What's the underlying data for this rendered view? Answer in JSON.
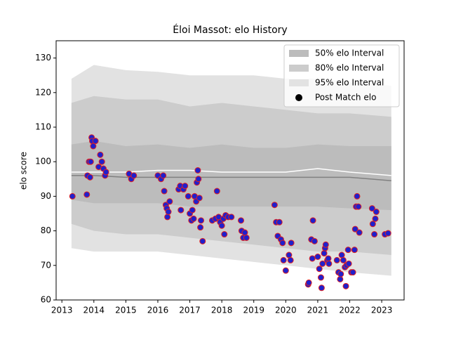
{
  "chart_data": {
    "type": "band-scatter",
    "title": "Éloi Massot: elo History",
    "y_label": "elo score",
    "xlim": [
      2012.82,
      2023.7
    ],
    "ylim": [
      60,
      135
    ],
    "xticks": [
      2013,
      2014,
      2015,
      2016,
      2017,
      2018,
      2019,
      2020,
      2021,
      2022,
      2023
    ],
    "yticks": [
      60,
      70,
      80,
      90,
      100,
      110,
      120,
      130
    ],
    "legend": "upper right",
    "band_x": [
      2013.3,
      2014,
      2015,
      2016,
      2017,
      2018,
      2019,
      2020,
      2021,
      2022,
      2023.3
    ],
    "bands": [
      {
        "name": "50% elo Interval",
        "color": "#bcbcbc",
        "upper": [
          105,
          106,
          104.5,
          105,
          104,
          105,
          104,
          104,
          105,
          104.5,
          104.5
        ],
        "lower": [
          89,
          88,
          88,
          88,
          87,
          87,
          87,
          87,
          87,
          86.5,
          86
        ]
      },
      {
        "name": "80% elo Interval",
        "color": "#cccccc",
        "upper": [
          117,
          119,
          118,
          118,
          116,
          117,
          116,
          115,
          114,
          114,
          113
        ],
        "lower": [
          82,
          80,
          79,
          79,
          78,
          77,
          76,
          75,
          74,
          74,
          73
        ]
      },
      {
        "name": "95% elo Interval",
        "color": "#e2e2e2",
        "upper": [
          124,
          128,
          126.5,
          126,
          125,
          125,
          125,
          124,
          124,
          123,
          122
        ],
        "lower": [
          75,
          74,
          74,
          74,
          73,
          72,
          71,
          70,
          69,
          68,
          67
        ]
      }
    ],
    "lines": [
      {
        "color": "#ffffff",
        "values": [
          97,
          97,
          97,
          97.5,
          97.5,
          97,
          97,
          97,
          98,
          97,
          96
        ]
      },
      {
        "color": "#808080",
        "values": [
          96,
          96,
          95.5,
          95.5,
          95.5,
          95.5,
          95.5,
          95.5,
          95.5,
          95.5,
          94.5
        ]
      }
    ],
    "points": {
      "name": "Post Match elo",
      "color": "#2020cc",
      "edgecolor": "#e02020",
      "x": [
        2013.33,
        2013.78,
        2013.8,
        2013.85,
        2013.88,
        2013.9,
        2013.93,
        2013.95,
        2013.98,
        2014.05,
        2014.15,
        2014.2,
        2014.25,
        2014.3,
        2014.35,
        2014.38,
        2015.1,
        2015.17,
        2015.25,
        2016.0,
        2016.1,
        2016.17,
        2016.2,
        2016.25,
        2016.28,
        2016.3,
        2016.33,
        2016.37,
        2016.65,
        2016.7,
        2016.72,
        2016.8,
        2016.85,
        2016.95,
        2017.0,
        2017.05,
        2017.08,
        2017.12,
        2017.15,
        2017.2,
        2017.22,
        2017.25,
        2017.27,
        2017.3,
        2017.33,
        2017.35,
        2017.4,
        2017.7,
        2017.8,
        2017.85,
        2017.9,
        2017.95,
        2018.0,
        2018.05,
        2018.08,
        2018.12,
        2018.2,
        2018.3,
        2018.6,
        2018.62,
        2018.67,
        2018.72,
        2018.77,
        2019.65,
        2019.7,
        2019.75,
        2019.8,
        2019.85,
        2019.9,
        2019.93,
        2020.0,
        2020.1,
        2020.15,
        2020.17,
        2020.7,
        2020.72,
        2020.8,
        2020.83,
        2020.85,
        2020.9,
        2021.0,
        2021.05,
        2021.1,
        2021.12,
        2021.15,
        2021.2,
        2021.23,
        2021.25,
        2021.3,
        2021.33,
        2021.35,
        2021.6,
        2021.65,
        2021.7,
        2021.72,
        2021.75,
        2021.8,
        2021.85,
        2021.88,
        2021.9,
        2021.95,
        2021.97,
        2022.05,
        2022.1,
        2022.15,
        2022.17,
        2022.2,
        2022.23,
        2022.27,
        2022.3,
        2022.7,
        2022.72,
        2022.77,
        2022.8,
        2022.83,
        2023.1,
        2023.2
      ],
      "values": [
        90,
        90.5,
        96,
        100,
        95.5,
        100,
        107,
        106,
        104.5,
        106,
        98.5,
        102,
        100,
        98,
        96,
        97,
        96.5,
        95,
        96,
        96,
        95,
        96,
        91.5,
        87.5,
        86.5,
        84,
        85.5,
        88.5,
        92,
        93,
        86,
        92,
        93,
        90,
        85,
        83,
        86,
        83.5,
        90,
        88.5,
        94,
        97.5,
        95,
        89.5,
        81,
        83,
        77,
        83,
        83.5,
        91.5,
        84,
        82.5,
        81.5,
        83.5,
        79,
        84.5,
        84,
        84,
        83,
        80,
        78,
        79.5,
        78,
        87.5,
        82.5,
        78.5,
        82.5,
        77.5,
        76.5,
        71.5,
        68.5,
        73,
        71.5,
        76.5,
        64.5,
        65,
        77.5,
        72,
        83,
        77,
        72.5,
        69,
        66.5,
        63.5,
        70.5,
        73.5,
        75,
        76,
        71.5,
        72,
        70.5,
        71.5,
        68,
        66,
        67.5,
        73,
        71.5,
        69.5,
        64,
        70,
        74.5,
        70.5,
        68,
        68,
        74.5,
        80.5,
        87,
        90,
        87,
        79.5,
        86.5,
        82,
        79,
        83.5,
        85.5,
        79,
        79.3
      ]
    }
  }
}
